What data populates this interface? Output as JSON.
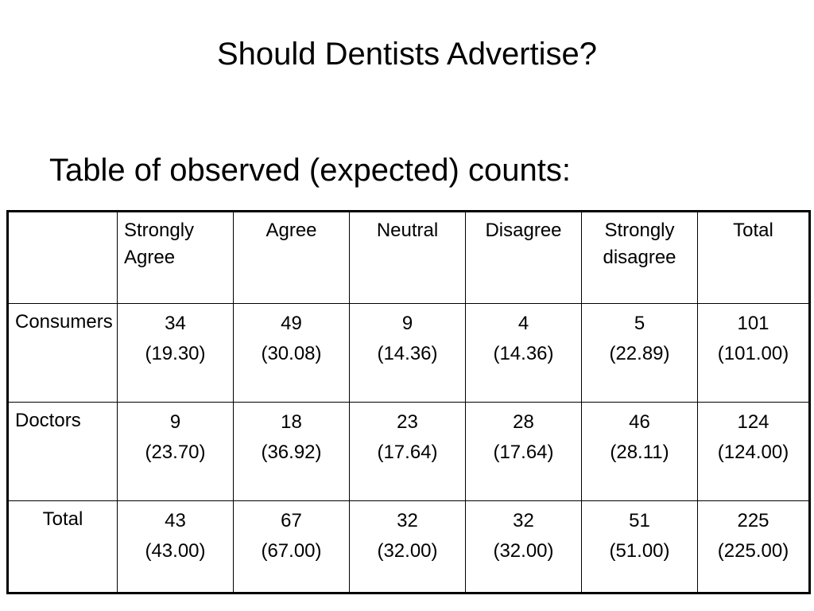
{
  "slide": {
    "title": "Should Dentists Advertise?",
    "subtitle": "Table of observed (expected) counts:"
  },
  "table": {
    "headers": [
      "",
      "Strongly Agree",
      "Agree",
      "Neutral",
      "Disagree",
      "Strongly disagree",
      "Total"
    ],
    "rows": [
      {
        "label": "Consumers",
        "cells": [
          {
            "observed": "34",
            "expected": "(19.30)"
          },
          {
            "observed": "49",
            "expected": "(30.08)"
          },
          {
            "observed": "9",
            "expected": "(14.36)"
          },
          {
            "observed": "4",
            "expected": "(14.36)"
          },
          {
            "observed": "5",
            "expected": "(22.89)"
          },
          {
            "observed": "101",
            "expected": "(101.00)"
          }
        ]
      },
      {
        "label": "Doctors",
        "cells": [
          {
            "observed": "9",
            "expected": "(23.70)"
          },
          {
            "observed": "18",
            "expected": "(36.92)"
          },
          {
            "observed": "23",
            "expected": "(17.64)"
          },
          {
            "observed": "28",
            "expected": "(17.64)"
          },
          {
            "observed": "46",
            "expected": "(28.11)"
          },
          {
            "observed": "124",
            "expected": "(124.00)"
          }
        ]
      },
      {
        "label": "Total",
        "cells": [
          {
            "observed": "43",
            "expected": "(43.00)"
          },
          {
            "observed": "67",
            "expected": "(67.00)"
          },
          {
            "observed": "32",
            "expected": "(32.00)"
          },
          {
            "observed": "32",
            "expected": "(32.00)"
          },
          {
            "observed": "51",
            "expected": "(51.00)"
          },
          {
            "observed": "225",
            "expected": "(225.00)"
          }
        ]
      }
    ]
  }
}
